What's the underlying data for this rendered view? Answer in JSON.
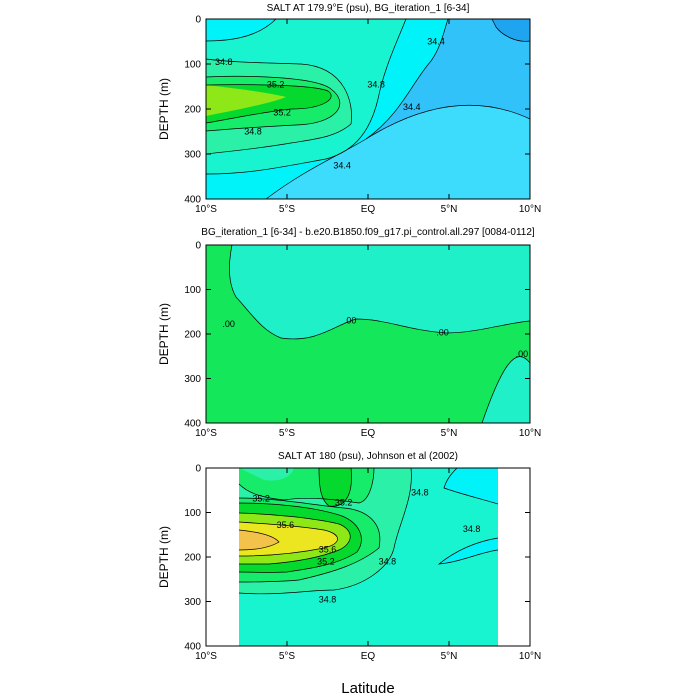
{
  "colors": {
    "s33_6": "#1fa5f0",
    "s34_0": "#31c2fa",
    "s34_2": "#3ddcfc",
    "s34_4": "#00f3f8",
    "s34_6": "#19f4d0",
    "s34_8": "#2bf0a8",
    "s35_0": "#16ec6a",
    "s35_2": "#06d92e",
    "s35_4": "#8ee818",
    "s35_6": "#ece620",
    "s35_8": "#f2c24a",
    "diff_neg": "#14e85a",
    "diff_pos": "#20f0c8",
    "missing": "#ffffff"
  },
  "chart_data": [
    {
      "type": "contour",
      "title": "SALT AT 179.9°E (psu), BG_iteration_1 [6-34]",
      "xlabel": "",
      "ylabel": "DEPTH (m)",
      "xlim": [
        -10,
        10
      ],
      "ylim": [
        400,
        0
      ],
      "x_ticks": [
        -10,
        -5,
        0,
        5,
        10
      ],
      "x_tick_labels": [
        "10°S",
        "5°S",
        "EQ",
        "5°N",
        "10°N"
      ],
      "y_ticks": [
        0,
        100,
        200,
        300,
        400
      ],
      "y_tick_labels": [
        "0",
        "100",
        "200",
        "300",
        "400"
      ],
      "contour_labels": [
        {
          "text": "34.8",
          "x": -8.9,
          "y": 95
        },
        {
          "text": "35.2",
          "x": -5.7,
          "y": 145
        },
        {
          "text": "35.2",
          "x": -5.3,
          "y": 208
        },
        {
          "text": "34.8",
          "x": -7.1,
          "y": 250
        },
        {
          "text": "34.8",
          "x": 0.5,
          "y": 145
        },
        {
          "text": "34.4",
          "x": 4.2,
          "y": 50
        },
        {
          "text": "34.4",
          "x": 2.7,
          "y": 195
        },
        {
          "text": "34.4",
          "x": -1.6,
          "y": 325
        }
      ]
    },
    {
      "type": "contour",
      "title": "BG_iteration_1 [6-34] - b.e20.B1850.f09_g17.pi_control.all.297 [0084-0112]",
      "xlabel": "",
      "ylabel": "DEPTH (m)",
      "xlim": [
        -10,
        10
      ],
      "ylim": [
        400,
        0
      ],
      "x_ticks": [
        -10,
        -5,
        0,
        5,
        10
      ],
      "x_tick_labels": [
        "10°S",
        "5°S",
        "EQ",
        "5°N",
        "10°N"
      ],
      "y_ticks": [
        0,
        100,
        200,
        300,
        400
      ],
      "y_tick_labels": [
        "0",
        "100",
        "200",
        "300",
        "400"
      ],
      "contour_labels": [
        {
          "text": ".00",
          "x": -8.6,
          "y": 178
        },
        {
          "text": ".00",
          "x": -1.1,
          "y": 170
        },
        {
          "text": ".00",
          "x": 4.6,
          "y": 197
        },
        {
          "text": ".00",
          "x": 9.5,
          "y": 245
        }
      ]
    },
    {
      "type": "contour",
      "title": "SALT AT 180 (psu), Johnson et al (2002)",
      "xlabel": "Latitude",
      "ylabel": "DEPTH (m)",
      "xlim": [
        -10,
        10
      ],
      "ylim": [
        400,
        0
      ],
      "data_x_range": [
        -8,
        8
      ],
      "x_ticks": [
        -10,
        -5,
        0,
        5,
        10
      ],
      "x_tick_labels": [
        "10°S",
        "5°S",
        "EQ",
        "5°N",
        "10°N"
      ],
      "y_ticks": [
        0,
        100,
        200,
        300,
        400
      ],
      "y_tick_labels": [
        "0",
        "100",
        "200",
        "300",
        "400"
      ],
      "contour_labels": [
        {
          "text": "35.2",
          "x": -6.6,
          "y": 68
        },
        {
          "text": "35.6",
          "x": -5.1,
          "y": 128
        },
        {
          "text": "35.6",
          "x": -2.5,
          "y": 183
        },
        {
          "text": "35.2",
          "x": -2.6,
          "y": 210
        },
        {
          "text": "35.2",
          "x": -1.5,
          "y": 78
        },
        {
          "text": "34.8",
          "x": 3.2,
          "y": 55
        },
        {
          "text": "34.8",
          "x": 6.4,
          "y": 137
        },
        {
          "text": "34.8",
          "x": 1.2,
          "y": 210
        },
        {
          "text": "34.8",
          "x": -2.5,
          "y": 295
        }
      ]
    }
  ]
}
